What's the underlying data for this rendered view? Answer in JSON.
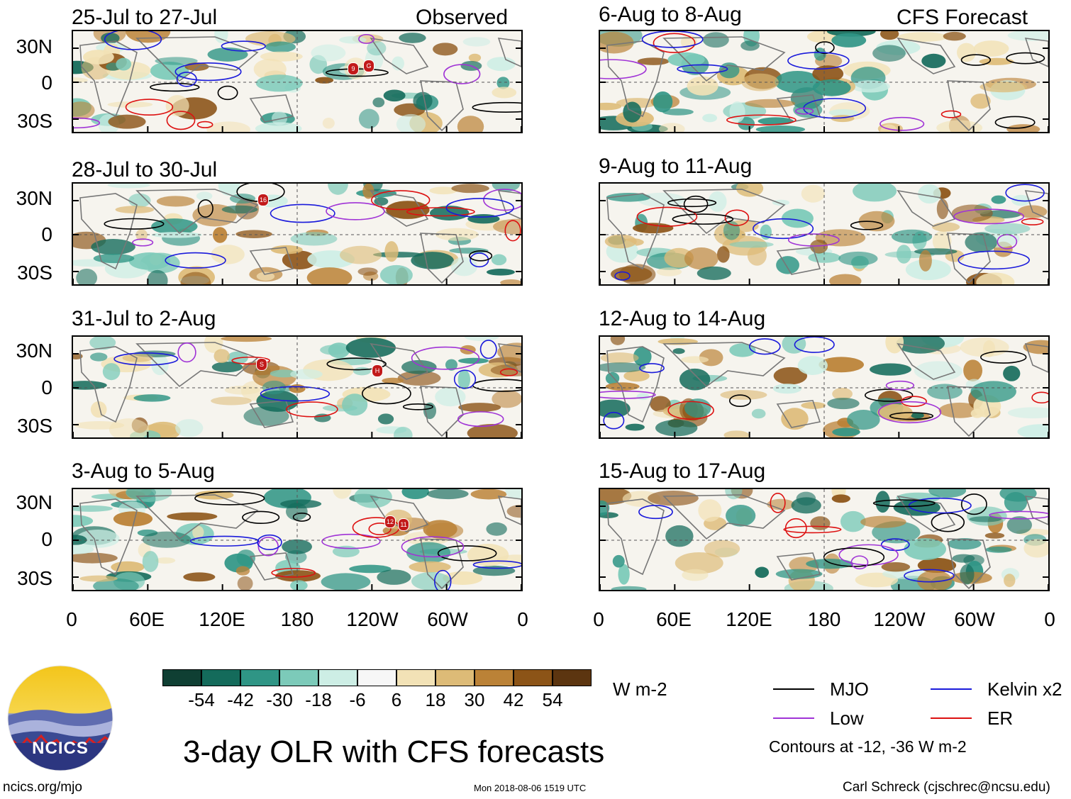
{
  "panels_left": [
    {
      "title": "25-Jul to 27-Jul",
      "tag": "Observed"
    },
    {
      "title": "28-Jul to 30-Jul",
      "tag": ""
    },
    {
      "title": "31-Jul to 2-Aug",
      "tag": ""
    },
    {
      "title": "3-Aug to 5-Aug",
      "tag": ""
    }
  ],
  "panels_right": [
    {
      "title": "6-Aug to 8-Aug",
      "tag": "CFS Forecast"
    },
    {
      "title": "9-Aug to 11-Aug",
      "tag": ""
    },
    {
      "title": "12-Aug to 14-Aug",
      "tag": ""
    },
    {
      "title": "15-Aug to 17-Aug",
      "tag": ""
    }
  ],
  "lat_labels": [
    "30N",
    "0",
    "30S"
  ],
  "lon_labels": [
    "0",
    "60E",
    "120E",
    "180",
    "120W",
    "60W",
    "0"
  ],
  "storm_markers": [
    {
      "panel": 0,
      "labels": [
        "9",
        "G"
      ]
    },
    {
      "panel": 1,
      "labels": [
        "16"
      ]
    },
    {
      "panel": 2,
      "labels": [
        "S",
        "H"
      ]
    },
    {
      "panel": 3,
      "labels": [
        "12",
        "11"
      ]
    }
  ],
  "colorbar": {
    "ticks": [
      "-54",
      "-42",
      "-30",
      "-18",
      "-6",
      "6",
      "18",
      "30",
      "42",
      "54"
    ],
    "colors": [
      "#0f3f33",
      "#146b5b",
      "#2f9585",
      "#7ccab9",
      "#cdeee5",
      "#f7f7f7",
      "#f2e2b6",
      "#ddbb77",
      "#bb8237",
      "#8c5417",
      "#5c3510"
    ],
    "units": "W m-2"
  },
  "legend": {
    "items": [
      {
        "label": "MJO",
        "color": "#000000"
      },
      {
        "label": "Kelvin x2",
        "color": "#1a1adb"
      },
      {
        "label": "Low",
        "color": "#a033d6"
      },
      {
        "label": "ER",
        "color": "#dd1111"
      }
    ],
    "note": "Contours at -12, -36 W m-2"
  },
  "logo_text": "NCICS",
  "main_title": "3-day OLR with CFS forecasts",
  "footer": {
    "left": "ncics.org/mjo",
    "center": "Mon 2018-08-06 1519 UTC",
    "right": "Carl Schreck (cjschrec@ncsu.edu)"
  }
}
